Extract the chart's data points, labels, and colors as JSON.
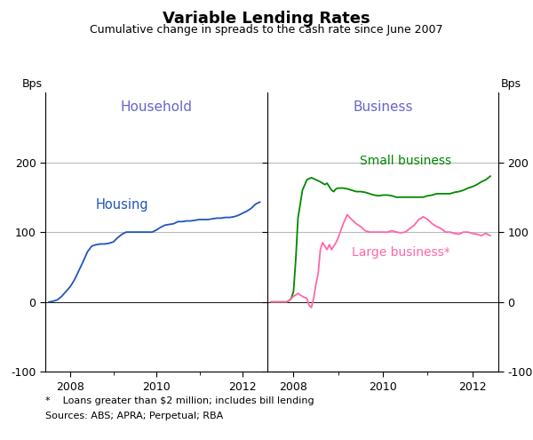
{
  "title": "Variable Lending Rates",
  "subtitle": "Cumulative change in spreads to the cash rate since June 2007",
  "ylabel_left": "Bps",
  "ylabel_right": "Bps",
  "panel_left_title": "Household",
  "panel_right_title": "Business",
  "ylim": [
    -100,
    300
  ],
  "yticks": [
    -100,
    0,
    100,
    200
  ],
  "footnote1": "*    Loans greater than $2 million; includes bill lending",
  "footnote2": "Sources: ABS; APRA; Perpetual; RBA",
  "housing_color": "#2255bb",
  "small_business_color": "#008800",
  "large_business_color": "#ff66aa",
  "housing_label": "Housing",
  "small_business_label": "Small business",
  "large_business_label": "Large business*",
  "panel_title_color": "#6666cc",
  "housing_x": [
    2007.5,
    2007.6,
    2007.7,
    2007.8,
    2007.9,
    2008.0,
    2008.1,
    2008.2,
    2008.3,
    2008.4,
    2008.5,
    2008.6,
    2008.7,
    2008.8,
    2008.9,
    2009.0,
    2009.1,
    2009.2,
    2009.3,
    2009.4,
    2009.5,
    2009.6,
    2009.7,
    2009.8,
    2009.9,
    2010.0,
    2010.1,
    2010.2,
    2010.3,
    2010.4,
    2010.5,
    2010.6,
    2010.7,
    2010.8,
    2010.9,
    2011.0,
    2011.1,
    2011.2,
    2011.3,
    2011.4,
    2011.5,
    2011.6,
    2011.7,
    2011.8,
    2011.9,
    2012.0,
    2012.1,
    2012.2,
    2012.3,
    2012.4
  ],
  "housing_y": [
    0,
    1,
    3,
    8,
    15,
    22,
    32,
    45,
    58,
    72,
    80,
    82,
    83,
    83,
    84,
    86,
    92,
    97,
    100,
    100,
    100,
    100,
    100,
    100,
    100,
    103,
    107,
    110,
    111,
    112,
    115,
    115,
    116,
    116,
    117,
    118,
    118,
    118,
    119,
    120,
    120,
    121,
    121,
    122,
    124,
    127,
    130,
    134,
    140,
    143
  ],
  "small_biz_x": [
    2007.5,
    2007.6,
    2007.7,
    2007.8,
    2007.85,
    2007.9,
    2007.95,
    2008.0,
    2008.05,
    2008.1,
    2008.2,
    2008.3,
    2008.4,
    2008.5,
    2008.6,
    2008.7,
    2008.75,
    2008.8,
    2008.85,
    2008.9,
    2008.95,
    2009.0,
    2009.1,
    2009.2,
    2009.3,
    2009.4,
    2009.5,
    2009.6,
    2009.7,
    2009.8,
    2009.9,
    2010.0,
    2010.1,
    2010.2,
    2010.3,
    2010.4,
    2010.5,
    2010.6,
    2010.7,
    2010.8,
    2010.9,
    2011.0,
    2011.1,
    2011.2,
    2011.3,
    2011.4,
    2011.5,
    2011.6,
    2011.7,
    2011.8,
    2011.9,
    2012.0,
    2012.1,
    2012.2,
    2012.3,
    2012.4
  ],
  "small_biz_y": [
    0,
    0,
    0,
    0,
    0,
    2,
    5,
    15,
    60,
    120,
    160,
    175,
    178,
    175,
    172,
    168,
    170,
    165,
    160,
    158,
    162,
    163,
    163,
    162,
    160,
    158,
    158,
    157,
    155,
    153,
    152,
    153,
    153,
    152,
    150,
    150,
    150,
    150,
    150,
    150,
    150,
    152,
    153,
    155,
    155,
    155,
    155,
    157,
    158,
    160,
    163,
    165,
    168,
    172,
    175,
    180
  ],
  "large_biz_x": [
    2007.5,
    2007.6,
    2007.7,
    2007.8,
    2007.85,
    2007.9,
    2007.95,
    2008.0,
    2008.05,
    2008.1,
    2008.2,
    2008.3,
    2008.35,
    2008.4,
    2008.45,
    2008.5,
    2008.55,
    2008.6,
    2008.65,
    2008.7,
    2008.75,
    2008.8,
    2008.85,
    2008.9,
    2008.95,
    2009.0,
    2009.1,
    2009.2,
    2009.3,
    2009.4,
    2009.5,
    2009.6,
    2009.7,
    2009.8,
    2009.9,
    2010.0,
    2010.1,
    2010.2,
    2010.3,
    2010.4,
    2010.5,
    2010.6,
    2010.7,
    2010.8,
    2010.9,
    2011.0,
    2011.1,
    2011.2,
    2011.3,
    2011.4,
    2011.5,
    2011.6,
    2011.7,
    2011.8,
    2011.9,
    2012.0,
    2012.1,
    2012.2,
    2012.3,
    2012.4
  ],
  "large_biz_y": [
    0,
    0,
    0,
    0,
    0,
    2,
    5,
    8,
    10,
    12,
    8,
    5,
    -5,
    -8,
    5,
    25,
    40,
    75,
    85,
    80,
    75,
    82,
    75,
    80,
    85,
    92,
    110,
    125,
    118,
    112,
    108,
    102,
    100,
    100,
    100,
    100,
    100,
    102,
    100,
    99,
    100,
    105,
    110,
    118,
    122,
    118,
    112,
    108,
    105,
    100,
    100,
    98,
    97,
    100,
    100,
    98,
    97,
    95,
    98,
    95
  ],
  "background_color": "#ffffff",
  "grid_color": "#bbbbbb",
  "left_xlim": [
    2007.42,
    2012.58
  ],
  "right_xlim": [
    2007.42,
    2012.58
  ],
  "xticks": [
    2008,
    2010,
    2012
  ],
  "xticklabels": [
    "2008",
    "2010",
    "2012"
  ]
}
